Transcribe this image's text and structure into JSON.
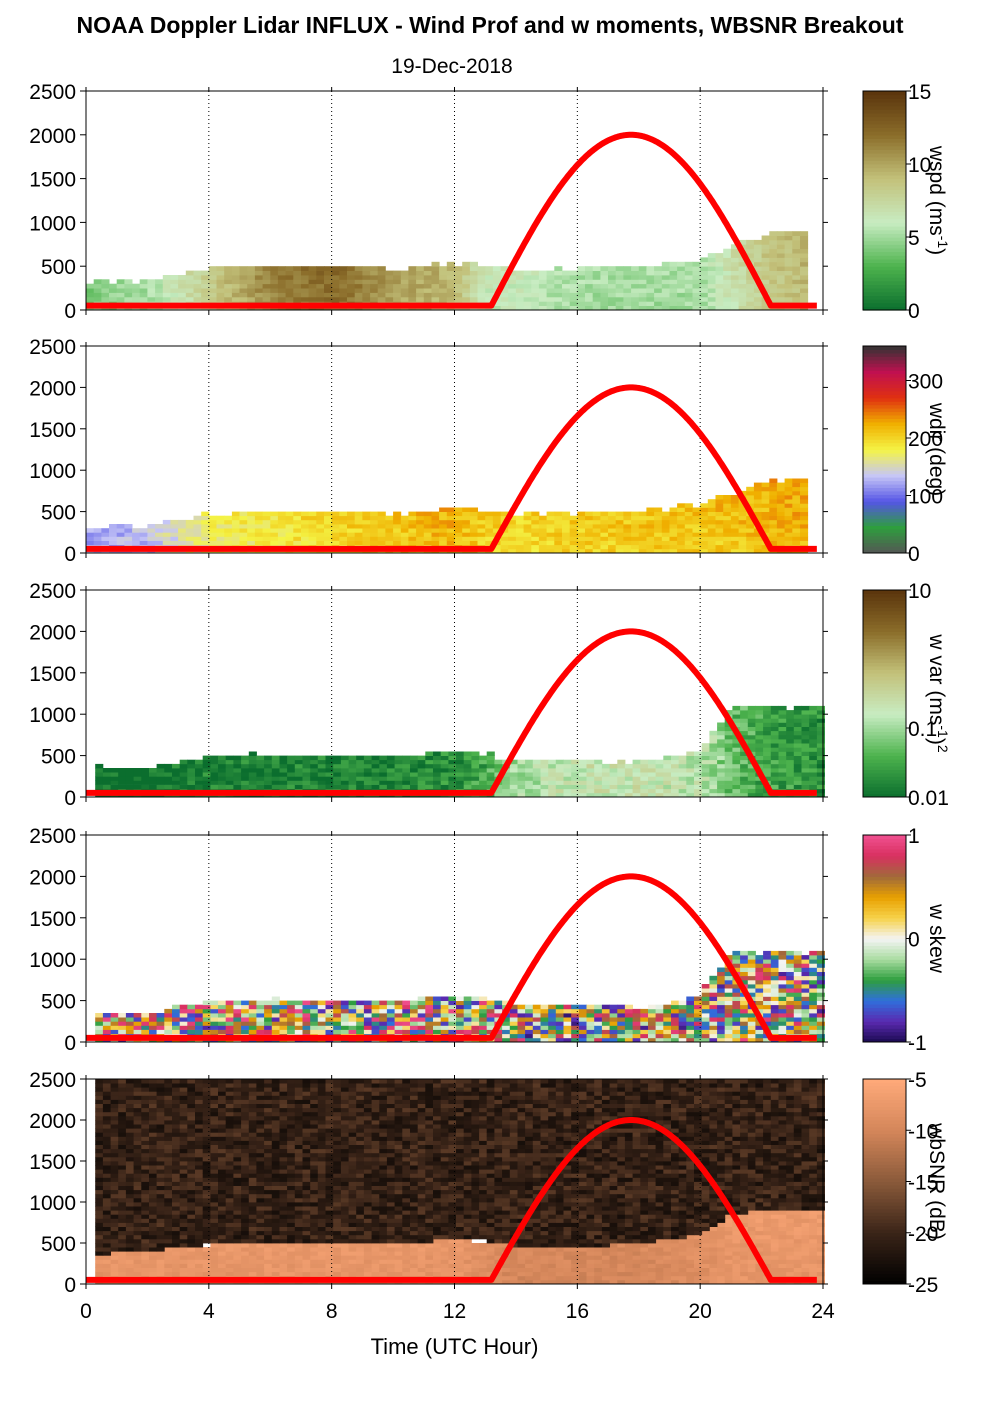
{
  "title": "NOAA Doppler Lidar INFLUX - Wind Prof and w moments, WBSNR Breakout",
  "subtitle": "19-Dec-2018",
  "chart_data": [
    {
      "type": "heatmap",
      "variable": "wspd",
      "colorbar_label": "wspd (ms",
      "colorbar_label_sup": "-1",
      "colorbar_label_tail": ")",
      "colorbar_ticks": [
        "0",
        "5",
        "10",
        "15"
      ],
      "colorbar_range": [
        0,
        15
      ],
      "colors": [
        "#0b6e2e",
        "#4db34d",
        "#c8ecc2",
        "#c3c17a",
        "#8b6d2a",
        "#5a340c"
      ],
      "y_ticks": [
        "0",
        "500",
        "1000",
        "1500",
        "2000",
        "2500"
      ],
      "ylim": [
        0,
        2500
      ],
      "profile": {
        "times": [
          0,
          2,
          4,
          6,
          8,
          10,
          12,
          13,
          14,
          16,
          18,
          20,
          22,
          23.5
        ],
        "tops": [
          300,
          310,
          450,
          480,
          480,
          440,
          520,
          500,
          440,
          460,
          480,
          560,
          830,
          900
        ],
        "values": [
          4,
          5,
          8,
          11,
          12,
          10,
          9,
          6,
          6,
          5,
          5,
          5,
          8,
          9
        ]
      }
    },
    {
      "type": "heatmap",
      "variable": "wdir",
      "colorbar_label": "wdir (deg)",
      "colorbar_ticks": [
        "0",
        "100",
        "200",
        "300"
      ],
      "colorbar_range": [
        0,
        360
      ],
      "colors": [
        "#555555",
        "#2e9e3e",
        "#5555e6",
        "#c6c6f6",
        "#f4f446",
        "#f0b000",
        "#e03010",
        "#c01050",
        "#333333"
      ],
      "y_ticks": [
        "0",
        "500",
        "1000",
        "1500",
        "2000",
        "2500"
      ],
      "ylim": [
        0,
        2500
      ],
      "profile": {
        "times": [
          0,
          2,
          4,
          6,
          8,
          10,
          12,
          13,
          14,
          16,
          18,
          20,
          22,
          23.5
        ],
        "tops": [
          300,
          310,
          450,
          480,
          480,
          440,
          520,
          500,
          440,
          460,
          480,
          560,
          830,
          900
        ],
        "values": [
          120,
          130,
          170,
          180,
          195,
          205,
          215,
          200,
          195,
          200,
          205,
          205,
          210,
          215
        ]
      }
    },
    {
      "type": "heatmap",
      "variable": "w var",
      "colorbar_label": "w var (ms",
      "colorbar_label_sup": "-1",
      "colorbar_label_tail": ")",
      "colorbar_label_exp": "2",
      "colorbar_ticks": [
        "0.01",
        "0.1",
        "10"
      ],
      "colorbar_range": [
        0.01,
        10
      ],
      "log_scale": true,
      "colors": [
        "#0b6e2e",
        "#4db34d",
        "#c8ecc2",
        "#c3c17a",
        "#8b6d2a",
        "#5a340c"
      ],
      "y_ticks": [
        "0",
        "500",
        "1000",
        "1500",
        "2000",
        "2500"
      ],
      "ylim": [
        0,
        2500
      ],
      "profile": {
        "times": [
          0.3,
          2,
          4,
          6,
          8,
          10,
          12,
          13,
          14,
          16,
          18,
          20,
          21,
          22,
          24
        ],
        "tops": [
          340,
          320,
          470,
          500,
          470,
          480,
          530,
          500,
          420,
          420,
          400,
          540,
          1080,
          1060,
          1070
        ],
        "values": [
          0.01,
          0.01,
          0.015,
          0.015,
          0.015,
          0.015,
          0.02,
          0.03,
          0.1,
          0.2,
          0.2,
          0.15,
          0.05,
          0.03,
          0.02
        ]
      }
    },
    {
      "type": "heatmap",
      "variable": "w skew",
      "colorbar_label": "w skew",
      "colorbar_ticks": [
        "-1",
        "0",
        "1"
      ],
      "colorbar_range": [
        -1,
        1
      ],
      "colors": [
        "#1a0a50",
        "#5a2ab0",
        "#2f6fdc",
        "#2e9e3e",
        "#a9dca0",
        "#f4f4f4",
        "#f6d24a",
        "#e8a000",
        "#a06a3a",
        "#d83060",
        "#f05090"
      ],
      "y_ticks": [
        "0",
        "500",
        "1000",
        "1500",
        "2000",
        "2500"
      ],
      "ylim": [
        0,
        2500
      ],
      "profile": {
        "times": [
          0.3,
          2,
          4,
          6,
          8,
          10,
          12,
          13,
          14,
          16,
          18,
          20,
          21,
          22,
          24
        ],
        "tops": [
          340,
          320,
          470,
          500,
          470,
          480,
          530,
          500,
          420,
          420,
          400,
          540,
          1080,
          1060,
          1070
        ],
        "values": [
          0.2,
          0.3,
          0.2,
          0.3,
          0.2,
          0.3,
          0.2,
          0.1,
          0,
          -0.1,
          0.1,
          0,
          0.2,
          0.1,
          0
        ]
      }
    },
    {
      "type": "heatmap",
      "variable": "wbSNR",
      "colorbar_label": "wbSNR (dB)",
      "colorbar_ticks": [
        "-25",
        "-20",
        "-15",
        "-10",
        "-5"
      ],
      "colorbar_range": [
        -25,
        -5
      ],
      "colors": [
        "#000000",
        "#3a2418",
        "#8a5a3a",
        "#d4865a",
        "#ffaa7a"
      ],
      "y_ticks": [
        "0",
        "500",
        "1000",
        "1500",
        "2000",
        "2500"
      ],
      "ylim": [
        0,
        2500
      ],
      "profile": {
        "times": [
          0.3,
          2,
          4,
          6,
          8,
          10,
          12,
          13,
          14,
          16,
          18,
          20,
          21,
          22,
          24
        ],
        "tops": [
          340,
          380,
          460,
          500,
          500,
          460,
          520,
          500,
          430,
          440,
          460,
          580,
          820,
          880,
          900
        ],
        "values": [
          -8,
          -8,
          -8,
          -8,
          -8,
          -8,
          -8,
          -9,
          -10,
          -10,
          -10,
          -9,
          -8,
          -8,
          -8
        ]
      }
    }
  ],
  "x_axis": {
    "label": "Time (UTC Hour)",
    "ticks": [
      "0",
      "4",
      "8",
      "12",
      "16",
      "20",
      "24"
    ],
    "xlim": [
      0,
      24
    ]
  },
  "overlay": {
    "description": "solar elevation curve (red)",
    "sunrise": 13.2,
    "sunset": 22.3,
    "peak_time": 17.7,
    "peak_value": 2000,
    "base_value": 50
  },
  "colors": {
    "overlay": "#ff0000",
    "axes": "#000000"
  }
}
